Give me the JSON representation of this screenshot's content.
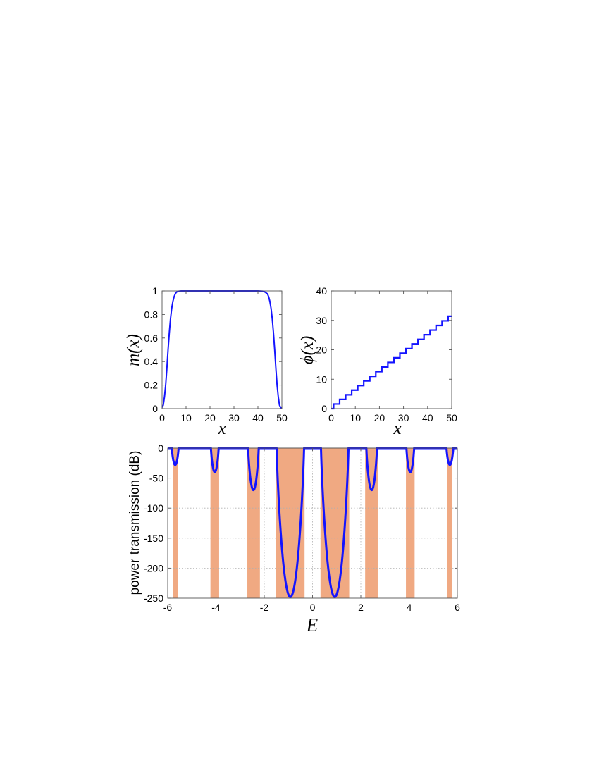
{
  "colors": {
    "line": "#1414ff",
    "band": "#f0a982",
    "axes": "#000000",
    "grid": "#b0b0b0"
  },
  "chart_data": [
    {
      "id": "m",
      "type": "line",
      "title": "",
      "xlabel": "x",
      "ylabel": "m(x)",
      "xlim": [
        0,
        50
      ],
      "ylim": [
        0,
        1
      ],
      "xticks": [
        0,
        10,
        20,
        30,
        40,
        50
      ],
      "yticks": [
        0,
        0.2,
        0.4,
        0.6,
        0.8,
        1
      ],
      "xtick_labels": [
        "0",
        "10",
        "20",
        "30",
        "40",
        "50"
      ],
      "ytick_labels": [
        "0",
        "0.2",
        "0.4",
        "0.6",
        "0.8",
        "1"
      ],
      "grid": false,
      "series": [
        {
          "x": [
            0,
            0.5,
            1,
            1.5,
            2,
            2.5,
            3,
            3.5,
            4,
            4.5,
            5,
            5.5,
            6,
            7,
            8,
            10,
            15,
            20,
            25,
            30,
            35,
            40,
            42,
            43,
            44,
            44.5,
            45,
            45.5,
            46,
            46.5,
            47,
            47.5,
            48,
            48.5,
            49,
            49.5,
            50
          ],
          "y": [
            0.01,
            0.03,
            0.1,
            0.2,
            0.34,
            0.5,
            0.64,
            0.76,
            0.85,
            0.91,
            0.95,
            0.975,
            0.99,
            0.998,
            1,
            1,
            1,
            1,
            1,
            1,
            1,
            1,
            0.998,
            0.99,
            0.975,
            0.95,
            0.91,
            0.85,
            0.76,
            0.64,
            0.5,
            0.34,
            0.2,
            0.1,
            0.03,
            0.01,
            0.005
          ]
        }
      ]
    },
    {
      "id": "phi",
      "type": "line",
      "title": "",
      "xlabel": "x",
      "ylabel": "ϕ(x)",
      "xlim": [
        0,
        50
      ],
      "ylim": [
        0,
        40
      ],
      "xticks": [
        0,
        10,
        20,
        30,
        40,
        50
      ],
      "yticks": [
        0,
        10,
        20,
        30,
        40
      ],
      "xtick_labels": [
        "0",
        "10",
        "20",
        "30",
        "40",
        "50"
      ],
      "ytick_labels": [
        "0",
        "10",
        "20",
        "30",
        "40"
      ],
      "grid": false,
      "step": {
        "x0": 0,
        "x1": 50,
        "period": 2.5,
        "first_jump": 1.0,
        "height": 1.57
      },
      "series": []
    },
    {
      "id": "transmission",
      "type": "line",
      "title": "",
      "xlabel": "E",
      "ylabel": "power transmission (dB)",
      "xlim": [
        -6,
        6
      ],
      "ylim": [
        -250,
        0
      ],
      "xticks": [
        -6,
        -4,
        -2,
        0,
        2,
        4,
        6
      ],
      "yticks": [
        -250,
        -200,
        -150,
        -100,
        -50,
        0
      ],
      "xtick_labels": [
        "-6",
        "-4",
        "-2",
        "0",
        "2",
        "4",
        "6"
      ],
      "ytick_labels": [
        "-250",
        "-200",
        "-150",
        "-100",
        "-50",
        "0"
      ],
      "grid": true,
      "bands": [
        [
          -5.78,
          -5.57
        ],
        [
          -4.23,
          -3.87
        ],
        [
          -2.7,
          -2.18
        ],
        [
          -1.52,
          -0.33
        ],
        [
          0.33,
          1.52
        ],
        [
          2.18,
          2.7
        ],
        [
          3.87,
          4.23
        ],
        [
          5.57,
          5.78
        ]
      ],
      "dips": [
        {
          "center": -5.69,
          "half_width": 0.14,
          "depth": 28
        },
        {
          "center": -4.05,
          "half_width": 0.16,
          "depth": 40
        },
        {
          "center": -2.45,
          "half_width": 0.22,
          "depth": 70
        },
        {
          "center": -0.92,
          "half_width": 0.57,
          "depth": 248
        },
        {
          "center": 0.92,
          "half_width": 0.57,
          "depth": 248
        },
        {
          "center": 2.45,
          "half_width": 0.22,
          "depth": 70
        },
        {
          "center": 4.05,
          "half_width": 0.16,
          "depth": 40
        },
        {
          "center": 5.69,
          "half_width": 0.14,
          "depth": 28
        }
      ],
      "series": []
    }
  ]
}
